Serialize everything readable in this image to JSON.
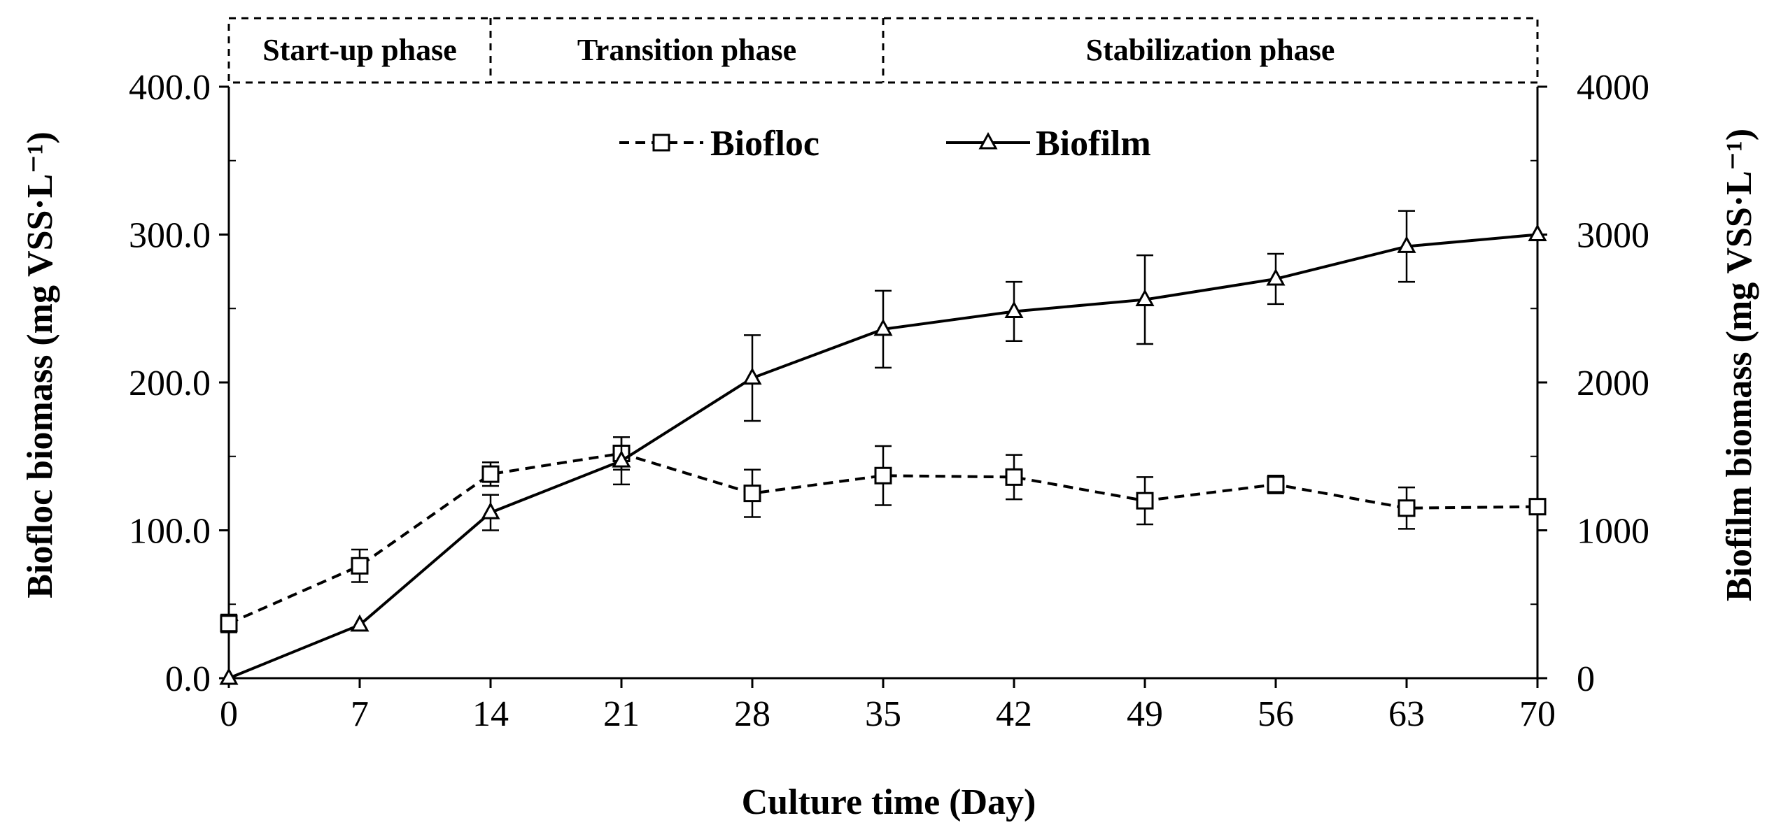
{
  "chart_data": {
    "type": "line",
    "xlabel": "Culture time (Day)",
    "ylabel_left": "Biofloc biomass (mg VSS·L⁻¹)",
    "ylabel_right": "Biofilm biomass (mg VSS·L⁻¹)",
    "x": [
      0,
      7,
      14,
      21,
      28,
      35,
      42,
      49,
      56,
      63,
      70
    ],
    "x_ticks": [
      "0",
      "7",
      "14",
      "21",
      "28",
      "35",
      "42",
      "49",
      "56",
      "63",
      "70"
    ],
    "xlim": [
      0,
      70
    ],
    "ylim_left": [
      0,
      400
    ],
    "ylim_right": [
      0,
      4000
    ],
    "y_ticks_left": [
      "0.0",
      "100.0",
      "200.0",
      "300.0",
      "400.0"
    ],
    "y_ticks_right": [
      "0",
      "1000",
      "2000",
      "3000",
      "4000"
    ],
    "series": [
      {
        "name": "Biofloc",
        "axis": "left",
        "style": "dashed",
        "marker": "square",
        "values": [
          37,
          76,
          138,
          152,
          125,
          137,
          136,
          120,
          131,
          115,
          116
        ],
        "errors": [
          6,
          11,
          8,
          11,
          16,
          20,
          15,
          16,
          6,
          14,
          0
        ]
      },
      {
        "name": "Biofilm",
        "axis": "right",
        "style": "solid",
        "marker": "triangle",
        "values": [
          0,
          360,
          1120,
          1470,
          2030,
          2360,
          2480,
          2560,
          2700,
          2920,
          3000
        ],
        "errors": [
          0,
          0,
          120,
          160,
          290,
          260,
          200,
          300,
          170,
          240,
          0
        ]
      }
    ],
    "phases": [
      {
        "label": "Start-up phase",
        "from": 0,
        "to": 14
      },
      {
        "label": "Transition phase",
        "from": 14,
        "to": 35
      },
      {
        "label": "Stabilization phase",
        "from": 35,
        "to": 70
      }
    ],
    "legend": {
      "position": "top-center"
    }
  }
}
